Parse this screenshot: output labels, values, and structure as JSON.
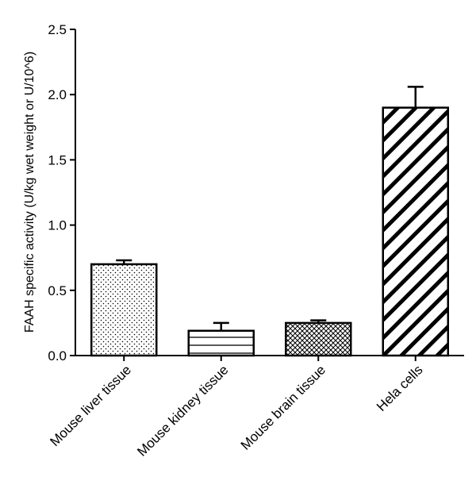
{
  "chart_data": {
    "type": "bar",
    "title": "",
    "xlabel": "",
    "ylabel": "FAAH specific activity (U/kg wet weight or U/10^6)",
    "ylim": [
      0,
      2.5
    ],
    "yticks": [
      "0.0",
      "0.5",
      "1.0",
      "1.5",
      "2.0",
      "2.5"
    ],
    "categories": [
      "Mouse liver tissue",
      "Mouse kidney tissue",
      "Mouse brain tissue",
      "Hela cells"
    ],
    "values": [
      0.7,
      0.19,
      0.25,
      1.9
    ],
    "errors": [
      0.03,
      0.06,
      0.02,
      0.16
    ],
    "patterns": [
      "dots",
      "horizontal-lines",
      "crosshatch",
      "diagonal-stripes"
    ],
    "grid": false,
    "colors": {
      "bar_fill": "#ffffff",
      "stroke": "#000000"
    }
  }
}
